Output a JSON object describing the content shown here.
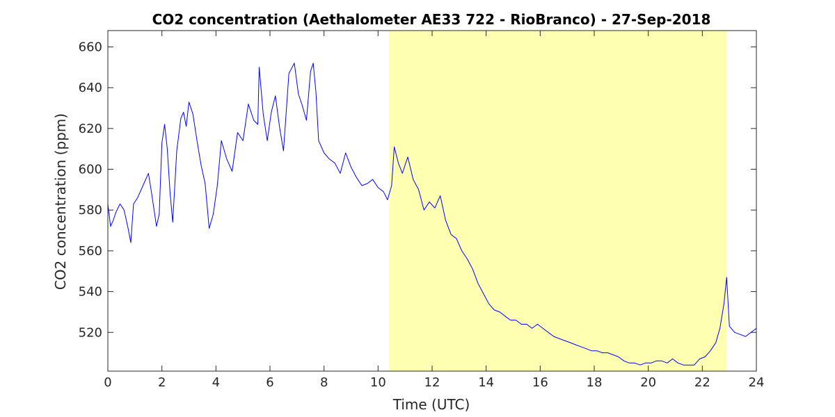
{
  "chart_data": {
    "type": "line",
    "title": "CO2 concentration (Aethalometer AE33 722 - RioBranco) - 27-Sep-2018",
    "xlabel": "Time (UTC)",
    "ylabel": "CO2 concentration (ppm)",
    "xlim": [
      0,
      24
    ],
    "ylim": [
      501,
      668
    ],
    "x_ticks": [
      0,
      2,
      4,
      6,
      8,
      10,
      12,
      14,
      16,
      18,
      20,
      22,
      24
    ],
    "y_ticks": [
      520,
      540,
      560,
      580,
      600,
      620,
      640,
      660
    ],
    "grid": false,
    "highlight_band": {
      "x_start": 10.4,
      "x_end": 22.9,
      "color": "#ffffb2"
    },
    "series": [
      {
        "color": "#0000ff",
        "x": [
          0.0,
          0.1,
          0.2,
          0.3,
          0.45,
          0.6,
          0.75,
          0.85,
          0.95,
          1.1,
          1.3,
          1.5,
          1.6,
          1.7,
          1.8,
          1.9,
          2.0,
          2.1,
          2.2,
          2.3,
          2.4,
          2.55,
          2.7,
          2.8,
          2.9,
          3.0,
          3.15,
          3.3,
          3.45,
          3.6,
          3.75,
          3.9,
          4.05,
          4.2,
          4.4,
          4.6,
          4.8,
          5.0,
          5.2,
          5.4,
          5.55,
          5.6,
          5.75,
          5.9,
          6.05,
          6.2,
          6.35,
          6.5,
          6.7,
          6.9,
          7.05,
          7.2,
          7.35,
          7.5,
          7.6,
          7.7,
          7.8,
          8.0,
          8.2,
          8.4,
          8.6,
          8.8,
          9.0,
          9.2,
          9.4,
          9.6,
          9.8,
          10.0,
          10.2,
          10.35,
          10.5,
          10.6,
          10.75,
          10.9,
          11.1,
          11.3,
          11.5,
          11.7,
          11.9,
          12.1,
          12.3,
          12.5,
          12.7,
          12.9,
          13.1,
          13.3,
          13.5,
          13.7,
          13.9,
          14.1,
          14.3,
          14.5,
          14.7,
          14.9,
          15.1,
          15.3,
          15.5,
          15.7,
          15.9,
          16.1,
          16.3,
          16.5,
          16.7,
          16.9,
          17.1,
          17.3,
          17.5,
          17.7,
          17.9,
          18.1,
          18.3,
          18.5,
          18.7,
          18.9,
          19.1,
          19.3,
          19.5,
          19.7,
          19.9,
          20.1,
          20.3,
          20.5,
          20.7,
          20.9,
          21.1,
          21.3,
          21.5,
          21.7,
          21.9,
          22.1,
          22.3,
          22.5,
          22.65,
          22.8,
          22.9,
          23.0,
          23.2,
          23.4,
          23.6,
          23.8,
          24.0
        ],
        "y": [
          583,
          572,
          575,
          579,
          583,
          580,
          571,
          564,
          583,
          586,
          592,
          598,
          590,
          581,
          572,
          578,
          613,
          622,
          610,
          589,
          574,
          609,
          625,
          628,
          621,
          633,
          627,
          614,
          602,
          593,
          571,
          578,
          592,
          614,
          605,
          599,
          618,
          614,
          632,
          624,
          622,
          650,
          627,
          614,
          628,
          636,
          621,
          609,
          647,
          652,
          637,
          631,
          624,
          648,
          652,
          638,
          614,
          608,
          605,
          603,
          598,
          608,
          601,
          596,
          592,
          593,
          595,
          591,
          589,
          585,
          592,
          611,
          603,
          598,
          606,
          595,
          590,
          580,
          584,
          581,
          587,
          575,
          568,
          566,
          560,
          556,
          551,
          544,
          539,
          534,
          531,
          530,
          528,
          526,
          526,
          524,
          524,
          522,
          524,
          522,
          520,
          518,
          517,
          516,
          515,
          514,
          513,
          512,
          511,
          511,
          510,
          510,
          509,
          508,
          506,
          505,
          505,
          504,
          505,
          505,
          506,
          506,
          505,
          507,
          505,
          504,
          504,
          504,
          507,
          508,
          511,
          515,
          522,
          534,
          547,
          523,
          520,
          519,
          518,
          520,
          522
        ]
      }
    ]
  }
}
